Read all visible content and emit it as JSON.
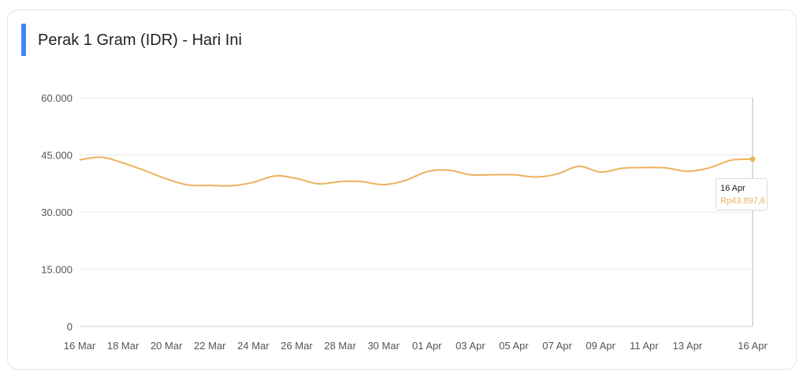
{
  "title": "Perak 1 Gram (IDR) - Hari Ini",
  "colors": {
    "accent": "#4285f4",
    "line": "#ecb25e",
    "grid": "#e8e8e8"
  },
  "tooltip": {
    "date": "16 Apr",
    "value": "Rp43.897,6"
  },
  "chart_data": {
    "type": "line",
    "title": "Perak 1 Gram (IDR) - Hari Ini",
    "xlabel": "",
    "ylabel": "",
    "ylim": [
      0,
      60000
    ],
    "y_ticks": [
      0,
      15000,
      30000,
      45000,
      60000
    ],
    "y_tick_labels": [
      "0",
      "15.000",
      "30.000",
      "45.000",
      "60.000"
    ],
    "x_tick_labels": [
      "16 Mar",
      "18 Mar",
      "20 Mar",
      "22 Mar",
      "24 Mar",
      "26 Mar",
      "28 Mar",
      "30 Mar",
      "01 Apr",
      "03 Apr",
      "05 Apr",
      "07 Apr",
      "09 Apr",
      "11 Apr",
      "13 Apr",
      "16 Apr"
    ],
    "x_tick_dates": [
      "2025-03-16",
      "2025-03-18",
      "2025-03-20",
      "2025-03-22",
      "2025-03-24",
      "2025-03-26",
      "2025-03-28",
      "2025-03-30",
      "2025-04-01",
      "2025-04-03",
      "2025-04-05",
      "2025-04-07",
      "2025-04-09",
      "2025-04-11",
      "2025-04-13",
      "2025-04-16"
    ],
    "grid": true,
    "series": [
      {
        "color": "#ecb25e",
        "x": [
          "2025-03-16",
          "2025-03-17",
          "2025-03-18",
          "2025-03-19",
          "2025-03-20",
          "2025-03-21",
          "2025-03-22",
          "2025-03-23",
          "2025-03-24",
          "2025-03-25",
          "2025-03-26",
          "2025-03-27",
          "2025-03-28",
          "2025-03-29",
          "2025-03-30",
          "2025-03-31",
          "2025-04-01",
          "2025-04-02",
          "2025-04-03",
          "2025-04-04",
          "2025-04-05",
          "2025-04-06",
          "2025-04-07",
          "2025-04-08",
          "2025-04-09",
          "2025-04-10",
          "2025-04-11",
          "2025-04-12",
          "2025-04-13",
          "2025-04-14",
          "2025-04-15",
          "2025-04-16"
        ],
        "values": [
          43700,
          44400,
          42900,
          40900,
          38700,
          37100,
          37000,
          36900,
          37800,
          39500,
          38800,
          37400,
          38000,
          38000,
          37200,
          38300,
          40600,
          41000,
          39800,
          39800,
          39800,
          39200,
          40000,
          42000,
          40500,
          41500,
          41700,
          41600,
          40700,
          41600,
          43600,
          43897.6
        ]
      }
    ]
  }
}
